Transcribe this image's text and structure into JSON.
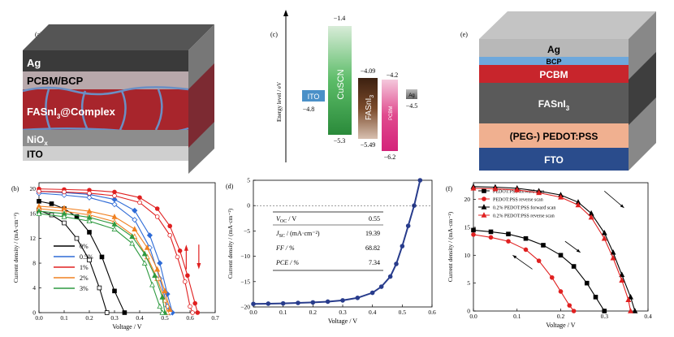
{
  "panels": {
    "a": {
      "label": "(a)",
      "layers": [
        "Ag",
        "PCBM/BCP",
        "FASnI",
        "3",
        "@Complex",
        "NiO",
        "x",
        "ITO"
      ],
      "colors": {
        "ag": "#3a3a3a",
        "pcbm": "#b8a8ab",
        "fasni": "#a8252c",
        "nio": "#8d8d8d",
        "ito": "#cfcfcf",
        "grain": "#6b8fc4"
      }
    },
    "c": {
      "label": "(c)",
      "ylabel": "Energy level / eV",
      "items": [
        {
          "name": "ITO",
          "value_label": "−4.8",
          "color": "#4a90c8"
        },
        {
          "name": "CuSCN",
          "top_label": "−1.4",
          "bottom_label": "−5.3",
          "color": "#3aa046"
        },
        {
          "name": "FASnI",
          "sub": "3",
          "top_label": "−4.09",
          "bottom_label": "−5.49",
          "color": "#6b3c1f"
        },
        {
          "name": "PCBM",
          "top_label": "−4.2",
          "bottom_label": "−6.2",
          "color": "#d4237a"
        },
        {
          "name": "Ag",
          "value_label": "−4.5",
          "color": "#7a7a7a"
        }
      ]
    },
    "e": {
      "label": "(e)",
      "layers": [
        "Ag",
        "BCP",
        "PCBM",
        "FASnI",
        "3",
        "(PEG-) PEDOT:PSS",
        "FTO"
      ],
      "colors": {
        "ag": "#b8b8b8",
        "bcp": "#6ea8dc",
        "pcbm": "#c8252c",
        "fasni": "#5a5a5a",
        "pedot": "#f0b090",
        "fto": "#2a4c8c"
      }
    }
  },
  "chart_data": [
    {
      "id": "b",
      "panel_label": "(b)",
      "type": "line",
      "xlabel": "Voltage / V",
      "ylabel": "Current density / (mA·cm⁻²)",
      "xlim": [
        0,
        0.7
      ],
      "ylim": [
        0,
        21
      ],
      "xticks": [
        "0.0",
        "0.1",
        "0.2",
        "0.3",
        "0.4",
        "0.5",
        "0.6",
        "0.7"
      ],
      "yticks": [
        "0",
        "4",
        "8",
        "12",
        "16",
        "20"
      ],
      "series": [
        {
          "name": "0%",
          "color": "#000000",
          "marker": "square",
          "forward": [
            [
              0,
              18
            ],
            [
              0.05,
              17.6
            ],
            [
              0.1,
              16.8
            ],
            [
              0.15,
              15.5
            ],
            [
              0.2,
              13
            ],
            [
              0.25,
              9
            ],
            [
              0.3,
              3.5
            ],
            [
              0.34,
              0
            ]
          ],
          "reverse": [
            [
              0,
              16.5
            ],
            [
              0.05,
              15.8
            ],
            [
              0.1,
              14.5
            ],
            [
              0.15,
              12
            ],
            [
              0.2,
              8.5
            ],
            [
              0.24,
              4
            ],
            [
              0.27,
              0
            ]
          ]
        },
        {
          "name": "0.5%",
          "color": "#2e6bd6",
          "marker": "diamond",
          "forward": [
            [
              0,
              19.6
            ],
            [
              0.1,
              19.4
            ],
            [
              0.2,
              19.1
            ],
            [
              0.3,
              18.3
            ],
            [
              0.38,
              16.5
            ],
            [
              0.44,
              12.5
            ],
            [
              0.48,
              8
            ],
            [
              0.51,
              3
            ],
            [
              0.53,
              0
            ]
          ],
          "reverse": [
            [
              0,
              19.3
            ],
            [
              0.1,
              19
            ],
            [
              0.2,
              18.6
            ],
            [
              0.3,
              17.5
            ],
            [
              0.38,
              15
            ],
            [
              0.44,
              10.5
            ],
            [
              0.48,
              5.5
            ],
            [
              0.51,
              1
            ],
            [
              0.52,
              0
            ]
          ]
        },
        {
          "name": "1%",
          "color": "#e02020",
          "marker": "circle",
          "forward": [
            [
              0,
              20
            ],
            [
              0.1,
              19.9
            ],
            [
              0.2,
              19.8
            ],
            [
              0.3,
              19.5
            ],
            [
              0.4,
              18.6
            ],
            [
              0.47,
              16.8
            ],
            [
              0.52,
              14
            ],
            [
              0.56,
              10
            ],
            [
              0.59,
              6
            ],
            [
              0.62,
              1.5
            ],
            [
              0.63,
              0
            ]
          ],
          "reverse": [
            [
              0,
              19.6
            ],
            [
              0.1,
              19.5
            ],
            [
              0.2,
              19.3
            ],
            [
              0.3,
              18.9
            ],
            [
              0.4,
              17.8
            ],
            [
              0.47,
              15.5
            ],
            [
              0.52,
              12.5
            ],
            [
              0.55,
              9
            ],
            [
              0.58,
              5
            ],
            [
              0.6,
              1
            ],
            [
              0.61,
              0
            ]
          ]
        },
        {
          "name": "2%",
          "color": "#f08020",
          "marker": "triangle",
          "forward": [
            [
              0,
              17.2
            ],
            [
              0.1,
              16.9
            ],
            [
              0.2,
              16.4
            ],
            [
              0.3,
              15.5
            ],
            [
              0.38,
              13.5
            ],
            [
              0.43,
              10.5
            ],
            [
              0.47,
              7
            ],
            [
              0.5,
              3.5
            ],
            [
              0.52,
              0.5
            ]
          ],
          "reverse": [
            [
              0,
              16.8
            ],
            [
              0.1,
              16.4
            ],
            [
              0.2,
              15.8
            ],
            [
              0.3,
              14.7
            ],
            [
              0.38,
              12.3
            ],
            [
              0.43,
              9
            ],
            [
              0.47,
              5.5
            ],
            [
              0.5,
              2
            ],
            [
              0.51,
              0
            ]
          ]
        },
        {
          "name": "3%",
          "color": "#2e9a40",
          "marker": "triangle",
          "forward": [
            [
              0,
              16.4
            ],
            [
              0.1,
              16
            ],
            [
              0.2,
              15.4
            ],
            [
              0.3,
              14.3
            ],
            [
              0.37,
              12.3
            ],
            [
              0.42,
              9.5
            ],
            [
              0.46,
              6
            ],
            [
              0.49,
              2.5
            ],
            [
              0.5,
              0
            ]
          ],
          "reverse": [
            [
              0,
              16
            ],
            [
              0.1,
              15.5
            ],
            [
              0.2,
              14.8
            ],
            [
              0.3,
              13.5
            ],
            [
              0.37,
              11.2
            ],
            [
              0.42,
              8
            ],
            [
              0.45,
              4.5
            ],
            [
              0.48,
              1
            ],
            [
              0.49,
              0
            ]
          ]
        }
      ],
      "legend_position": "bottom-left"
    },
    {
      "id": "d",
      "panel_label": "(d)",
      "type": "line",
      "xlabel": "Voltage / V",
      "ylabel": "Current density / (mA·cm⁻²)",
      "xlim": [
        0,
        0.6
      ],
      "ylim": [
        -20,
        5
      ],
      "xticks": [
        "0.0",
        "0.1",
        "0.2",
        "0.3",
        "0.4",
        "0.5",
        "0.6"
      ],
      "yticks": [
        "−20",
        "−15",
        "−10",
        "−5",
        "0",
        "5"
      ],
      "series": [
        {
          "color": "#283c8c",
          "points": [
            [
              0,
              -19.4
            ],
            [
              0.05,
              -19.35
            ],
            [
              0.1,
              -19.3
            ],
            [
              0.15,
              -19.2
            ],
            [
              0.2,
              -19.1
            ],
            [
              0.25,
              -18.95
            ],
            [
              0.3,
              -18.7
            ],
            [
              0.35,
              -18.2
            ],
            [
              0.4,
              -17.2
            ],
            [
              0.43,
              -16
            ],
            [
              0.46,
              -14
            ],
            [
              0.48,
              -11.5
            ],
            [
              0.5,
              -8
            ],
            [
              0.52,
              -4
            ],
            [
              0.54,
              0
            ],
            [
              0.56,
              5
            ]
          ]
        }
      ],
      "table": [
        {
          "param": "V",
          "sub": "OC",
          "unit": " / V",
          "value": "0.55"
        },
        {
          "param": "J",
          "sub": "SC",
          "unit": " / (mA·cm⁻²)",
          "value": "19.39"
        },
        {
          "param": "FF / %",
          "sub": "",
          "unit": "",
          "value": "68.82"
        },
        {
          "param": "PCE / %",
          "sub": "",
          "unit": "",
          "value": "7.34"
        }
      ]
    },
    {
      "id": "f",
      "panel_label": "(f)",
      "type": "line",
      "xlabel": "Voltage / V",
      "ylabel": "Current density / (mA·cm⁻²)",
      "xlim": [
        0,
        0.4
      ],
      "ylim": [
        0,
        23
      ],
      "xticks": [
        "0.0",
        "0.1",
        "0.2",
        "0.3",
        "0.4"
      ],
      "yticks": [
        "0",
        "5",
        "10",
        "15",
        "20"
      ],
      "series": [
        {
          "name": "PEDOT:PSS forward scan",
          "color": "#000000",
          "marker": "square",
          "points": [
            [
              0,
              14.5
            ],
            [
              0.04,
              14.2
            ],
            [
              0.08,
              13.8
            ],
            [
              0.12,
              13
            ],
            [
              0.16,
              11.8
            ],
            [
              0.2,
              10
            ],
            [
              0.23,
              8
            ],
            [
              0.26,
              5
            ],
            [
              0.28,
              2.5
            ],
            [
              0.3,
              0
            ]
          ]
        },
        {
          "name": "PEDOT:PSS reverse scan",
          "color": "#e02020",
          "marker": "circle",
          "points": [
            [
              0,
              13.7
            ],
            [
              0.04,
              13.2
            ],
            [
              0.08,
              12.5
            ],
            [
              0.12,
              11
            ],
            [
              0.15,
              9
            ],
            [
              0.18,
              6
            ],
            [
              0.2,
              3.5
            ],
            [
              0.22,
              1
            ],
            [
              0.23,
              0
            ]
          ]
        },
        {
          "name": "0.2% PEDOT:PSS forward scan",
          "color": "#000000",
          "marker": "triangle",
          "points": [
            [
              0,
              22.3
            ],
            [
              0.05,
              22.2
            ],
            [
              0.1,
              22
            ],
            [
              0.15,
              21.5
            ],
            [
              0.2,
              20.8
            ],
            [
              0.24,
              19.5
            ],
            [
              0.27,
              17.5
            ],
            [
              0.3,
              14
            ],
            [
              0.32,
              10.5
            ],
            [
              0.34,
              6.5
            ],
            [
              0.36,
              2.5
            ],
            [
              0.37,
              0
            ]
          ]
        },
        {
          "name": "0.2% PEDOT:PSS reverse scan",
          "color": "#e02020",
          "marker": "triangle",
          "points": [
            [
              0,
              22
            ],
            [
              0.05,
              21.9
            ],
            [
              0.1,
              21.7
            ],
            [
              0.15,
              21.2
            ],
            [
              0.2,
              20.4
            ],
            [
              0.24,
              19
            ],
            [
              0.27,
              16.8
            ],
            [
              0.3,
              13
            ],
            [
              0.32,
              9.5
            ],
            [
              0.34,
              5.5
            ],
            [
              0.355,
              2
            ],
            [
              0.36,
              0
            ]
          ]
        }
      ],
      "legend_position": "top-right"
    }
  ]
}
